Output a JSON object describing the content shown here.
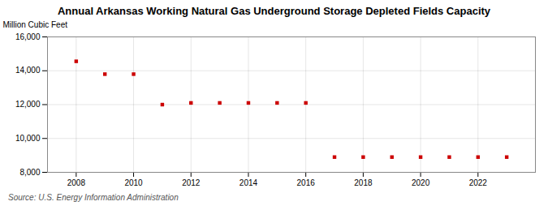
{
  "chart_data": {
    "type": "scatter",
    "title": "Annual Arkansas Working Natural Gas Underground Storage Depleted Fields Capacity",
    "ylabel": "Million Cubic Feet",
    "annotations": [
      "Source: U.S. Energy Information Administration"
    ],
    "x": [
      2008,
      2009,
      2010,
      2011,
      2012,
      2013,
      2014,
      2015,
      2016,
      2017,
      2018,
      2019,
      2020,
      2021,
      2022,
      2023
    ],
    "values": [
      14558,
      13800,
      13800,
      12000,
      12100,
      12100,
      12100,
      12100,
      12100,
      8900,
      8900,
      8900,
      8900,
      8900,
      8900,
      8900
    ],
    "color": "#cc0000",
    "marker": "square",
    "xlim": [
      2007.0,
      2024.0
    ],
    "xticks": [
      2008,
      2010,
      2012,
      2014,
      2016,
      2018,
      2020,
      2022
    ],
    "ylim": [
      8000,
      16000
    ],
    "yticks": [
      {
        "value": 8000,
        "label": "8,000"
      },
      {
        "value": 10000,
        "label": "10,000"
      },
      {
        "value": 12000,
        "label": "12,000"
      },
      {
        "value": 14000,
        "label": "14,000"
      },
      {
        "value": 16000,
        "label": "16,000"
      }
    ],
    "grid": true
  }
}
